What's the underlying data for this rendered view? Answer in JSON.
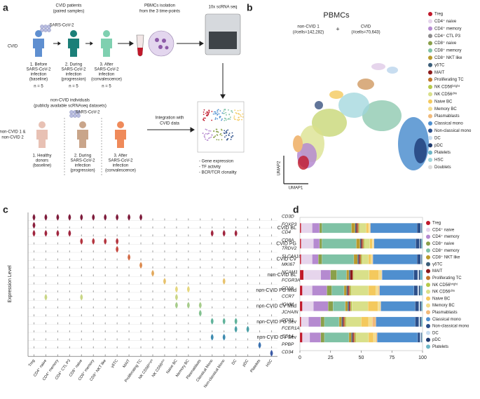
{
  "panel_a": {
    "label": "a",
    "cvid_header": [
      "CVID patients",
      "(paired samples)"
    ],
    "cvid": "CVID",
    "virus": "SARS-CoV-2",
    "cvid_steps": [
      [
        "1. Before",
        "SARS-CoV-2",
        "infection",
        "(baseline)"
      ],
      [
        "2. During",
        "SARS-CoV-2",
        "infection",
        "(progression)"
      ],
      [
        "3. After",
        "SARS-CoV-2",
        "infection",
        "(convalescence)"
      ]
    ],
    "n": [
      "n = 5",
      "n = 5",
      "n = 5"
    ],
    "pbmc": [
      "PBMCs isolation",
      "from the 3 time-points"
    ],
    "seq": "10x scRNA seq",
    "noncvid_header": [
      "non-CVID individuals",
      "(publicly available scRNAseq datasets)"
    ],
    "noncvid": [
      "non-CVID 1 &",
      "non-CVID 2"
    ],
    "virus2": "SARS-CoV-2",
    "noncvid_steps": [
      [
        "1. Healthy",
        "donors",
        "(baseline)"
      ],
      [
        "2. During",
        "SARS-CoV-2",
        "infection",
        "(progression)"
      ],
      [
        "3. After",
        "SARS-CoV-2",
        "infection",
        "(convalescence)"
      ]
    ],
    "integration": [
      "Integration with",
      "CVID data"
    ],
    "outputs": [
      "- Gene expression",
      "- TF activity",
      "- BCR/TCR clonality"
    ]
  },
  "panel_b": {
    "label": "b",
    "title": "PBMCs",
    "left": [
      "non-CVID 1",
      "(#cells=142,282)"
    ],
    "plus": "+",
    "right": [
      "CVID",
      "(#cells=70,643)"
    ],
    "ylabel": "UMAP2",
    "xlabel": "UMAP1",
    "legend": [
      {
        "name": "Treg",
        "color": "#c0182a"
      },
      {
        "name": "CD4⁺ naive",
        "color": "#e6d5ec"
      },
      {
        "name": "CD4⁺ memory",
        "color": "#b58ad0"
      },
      {
        "name": "CD4⁺ CTL P3",
        "color": "#8c8c8c"
      },
      {
        "name": "CD8⁺ naive",
        "color": "#8aa04a"
      },
      {
        "name": "CD8⁺ memory",
        "color": "#7fc2a5"
      },
      {
        "name": "CD8⁺ NKT like",
        "color": "#b99a2c"
      },
      {
        "name": "γδTC",
        "color": "#3b5d78"
      },
      {
        "name": "MAIT",
        "color": "#8b1a1a"
      },
      {
        "name": "Proliferating TC",
        "color": "#c0772c"
      },
      {
        "name": "NK CD56ᵇʳⁱᵍʰᵗ",
        "color": "#b5c94a"
      },
      {
        "name": "NK CD56ᵈⁱᵐ",
        "color": "#d9e08a"
      },
      {
        "name": "Naive BC",
        "color": "#f4c95d"
      },
      {
        "name": "Memory BC",
        "color": "#f2dc8c"
      },
      {
        "name": "Plasmablasts",
        "color": "#f1ba7a"
      },
      {
        "name": "Classical mono",
        "color": "#4f8fcf"
      },
      {
        "name": "Non-classical mono",
        "color": "#2c4f8a"
      },
      {
        "name": "DC",
        "color": "#c8ddf0"
      },
      {
        "name": "pDC",
        "color": "#1e3a6e"
      },
      {
        "name": "Platelets",
        "color": "#6db6c6"
      },
      {
        "name": "HSC",
        "color": "#9fd6dc"
      },
      {
        "name": "Doublets",
        "color": "#dcdcdc"
      }
    ]
  },
  "panel_c": {
    "label": "c",
    "ylabel": "Expression Level",
    "cell_types": [
      "Treg",
      "CD4⁺ naive",
      "CD4⁺ memory",
      "CD4⁺ CTL P3",
      "CD8⁺ naive",
      "CD8⁺ memory",
      "CD8⁺ NKT like",
      "γδTC",
      "MAIT",
      "Proliferating TC",
      "NK CD56ᵇʳⁱᵍʰᵗ",
      "NK CD56ᵈⁱᵐ",
      "Naive BC",
      "Memory BC",
      "Plasmablasts",
      "Classical Mono",
      "Non-classical Mono",
      "DC",
      "pDC",
      "Platelets",
      "HSC"
    ],
    "genes": [
      "CD3D",
      "FOXP3",
      "CD4",
      "CD8A",
      "TRDV2",
      "SLC4A10",
      "MKI67",
      "NCAM1",
      "FCGR3A",
      "CD19",
      "CCR7",
      "IGHM",
      "JCHAIN",
      "CD33",
      "FCER1A",
      "CD14",
      "PPBP",
      "CD34"
    ]
  },
  "chart_data": {
    "type": "bar",
    "label": "d",
    "orientation": "horizontal",
    "stacked": true,
    "categories": [
      "CVID BL",
      "CVID PG",
      "CVID CV",
      "non-CVID BL",
      "non-CVID PG Mild",
      "non-CVID CV Mild",
      "non-CVID PG Sev",
      "non-CVID CV Sev"
    ],
    "xlim": [
      0,
      100
    ],
    "xticks": [
      0,
      25,
      50,
      75,
      100
    ],
    "series": [
      {
        "name": "Treg",
        "color": "#c0182a",
        "values": [
          1,
          1,
          1,
          3,
          2,
          2,
          1,
          2
        ]
      },
      {
        "name": "CD4⁺ naive",
        "color": "#e6d5ec",
        "values": [
          9,
          10,
          9,
          14,
          8,
          9,
          6,
          6
        ]
      },
      {
        "name": "CD4⁺ memory",
        "color": "#b58ad0",
        "values": [
          6,
          5,
          5,
          8,
          12,
          12,
          10,
          9
        ]
      },
      {
        "name": "CD8⁺ naive",
        "color": "#8aa04a",
        "values": [
          2,
          2,
          3,
          5,
          4,
          4,
          3,
          3
        ]
      },
      {
        "name": "CD8⁺ memory",
        "color": "#7fc2a5",
        "values": [
          24,
          28,
          26,
          8,
          10,
          10,
          12,
          20
        ]
      },
      {
        "name": "CD8⁺ NKT like",
        "color": "#b99a2c",
        "values": [
          3,
          3,
          3,
          2,
          2,
          2,
          2,
          2
        ]
      },
      {
        "name": "γδTC",
        "color": "#3b5d78",
        "values": [
          1,
          1,
          1,
          1,
          1,
          1,
          1,
          1
        ]
      },
      {
        "name": "MAIT",
        "color": "#8b1a1a",
        "values": [
          1,
          1,
          1,
          2,
          1,
          1,
          1,
          1
        ]
      },
      {
        "name": "Proliferating TC",
        "color": "#c0772c",
        "values": [
          1,
          1,
          1,
          0.5,
          1,
          0.5,
          1,
          1
        ]
      },
      {
        "name": "NK CD56ᵇʳⁱᵍʰᵗ",
        "color": "#b5c94a",
        "values": [
          1,
          1,
          1,
          1,
          1,
          1,
          1,
          1
        ]
      },
      {
        "name": "NK CD56ᵈⁱᵐ",
        "color": "#d9e08a",
        "values": [
          5,
          4,
          5,
          12,
          14,
          13,
          12,
          10
        ]
      },
      {
        "name": "Naive BC",
        "color": "#f4c95d",
        "values": [
          2,
          2,
          2,
          8,
          6,
          8,
          6,
          4
        ]
      },
      {
        "name": "Memory BC",
        "color": "#f2dc8c",
        "values": [
          1,
          1,
          1,
          2,
          2,
          2,
          3,
          2
        ]
      },
      {
        "name": "Plasmablasts",
        "color": "#f1ba7a",
        "values": [
          0.5,
          0.5,
          0.5,
          0.5,
          1,
          0.5,
          3,
          1
        ]
      },
      {
        "name": "Classical mono",
        "color": "#4f8fcf",
        "values": [
          38,
          34,
          36,
          26,
          28,
          28,
          32,
          33
        ]
      },
      {
        "name": "Non-classical mono",
        "color": "#2c4f8a",
        "values": [
          3,
          3,
          3,
          3,
          3,
          3,
          3,
          2
        ]
      },
      {
        "name": "DC",
        "color": "#c8ddf0",
        "values": [
          0.5,
          0.5,
          0.5,
          1,
          1,
          1,
          1,
          1
        ]
      },
      {
        "name": "pDC",
        "color": "#1e3a6e",
        "values": [
          0.5,
          1,
          0.5,
          1,
          1,
          1,
          1,
          0.5
        ]
      },
      {
        "name": "Platelets",
        "color": "#6db6c6",
        "values": [
          0.5,
          1,
          0.5,
          2,
          2,
          1,
          1,
          0.5
        ]
      }
    ]
  }
}
